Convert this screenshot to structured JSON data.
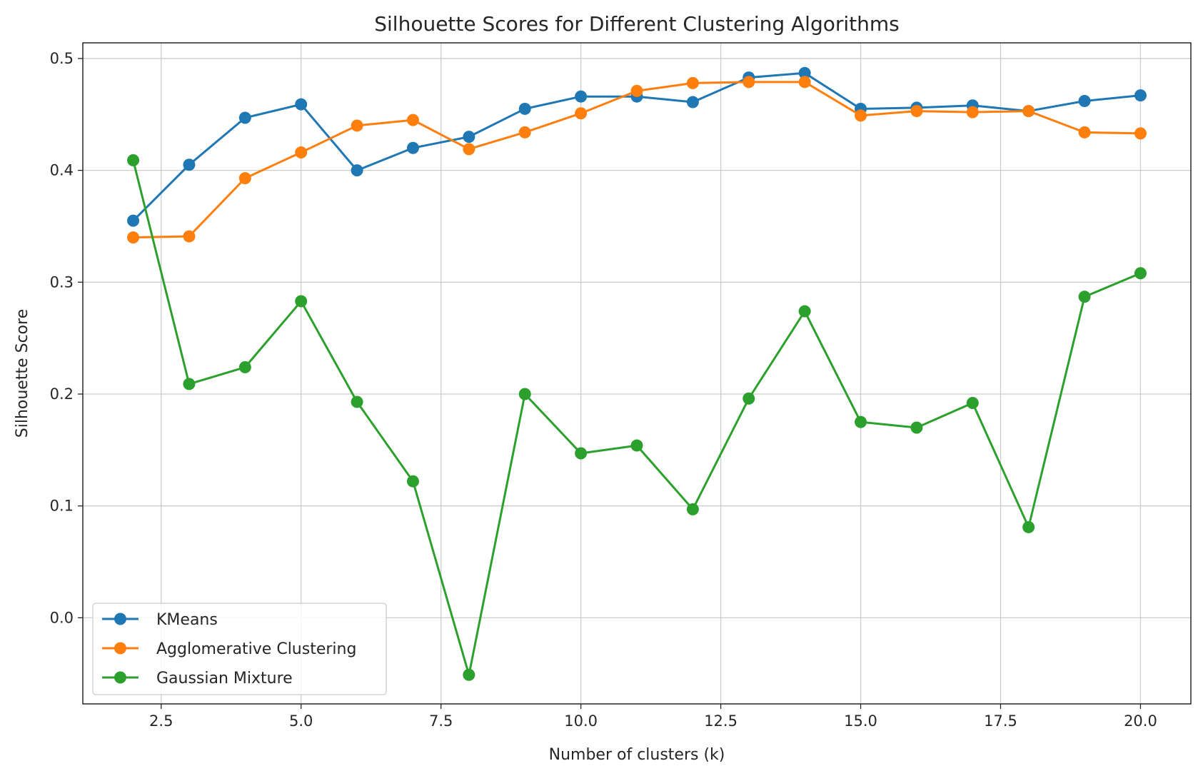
{
  "chart_data": {
    "type": "line",
    "title": "Silhouette Scores for Different Clustering Algorithms",
    "xlabel": "Number of clusters (k)",
    "ylabel": "Silhouette Score",
    "xlim": [
      1.1,
      20.9
    ],
    "ylim": [
      -0.077,
      0.514
    ],
    "xticks": [
      2.5,
      5.0,
      7.5,
      10.0,
      12.5,
      15.0,
      17.5,
      20.0
    ],
    "xtick_labels": [
      "2.5",
      "5.0",
      "7.5",
      "10.0",
      "12.5",
      "15.0",
      "17.5",
      "20.0"
    ],
    "yticks": [
      0.0,
      0.1,
      0.2,
      0.3,
      0.4,
      0.5
    ],
    "ytick_labels": [
      "0.0",
      "0.1",
      "0.2",
      "0.3",
      "0.4",
      "0.5"
    ],
    "grid": true,
    "legend_position": "lower-left",
    "x": [
      2,
      3,
      4,
      5,
      6,
      7,
      8,
      9,
      10,
      11,
      12,
      13,
      14,
      15,
      16,
      17,
      18,
      19,
      20
    ],
    "series": [
      {
        "name": "KMeans",
        "color": "#1f77b4",
        "values": [
          0.355,
          0.405,
          0.447,
          0.459,
          0.4,
          0.42,
          0.43,
          0.455,
          0.466,
          0.466,
          0.461,
          0.483,
          0.487,
          0.455,
          0.456,
          0.458,
          0.453,
          0.462,
          0.467
        ]
      },
      {
        "name": "Agglomerative Clustering",
        "color": "#ff7f0e",
        "values": [
          0.34,
          0.341,
          0.393,
          0.416,
          0.44,
          0.445,
          0.419,
          0.434,
          0.451,
          0.471,
          0.478,
          0.479,
          0.479,
          0.449,
          0.453,
          0.452,
          0.453,
          0.434,
          0.433
        ]
      },
      {
        "name": "Gaussian Mixture",
        "color": "#2ca02c",
        "values": [
          0.409,
          0.209,
          0.224,
          0.283,
          0.193,
          0.122,
          -0.051,
          0.2,
          0.147,
          0.154,
          0.097,
          0.196,
          0.274,
          0.175,
          0.17,
          0.192,
          0.081,
          0.287,
          0.308
        ]
      }
    ]
  }
}
